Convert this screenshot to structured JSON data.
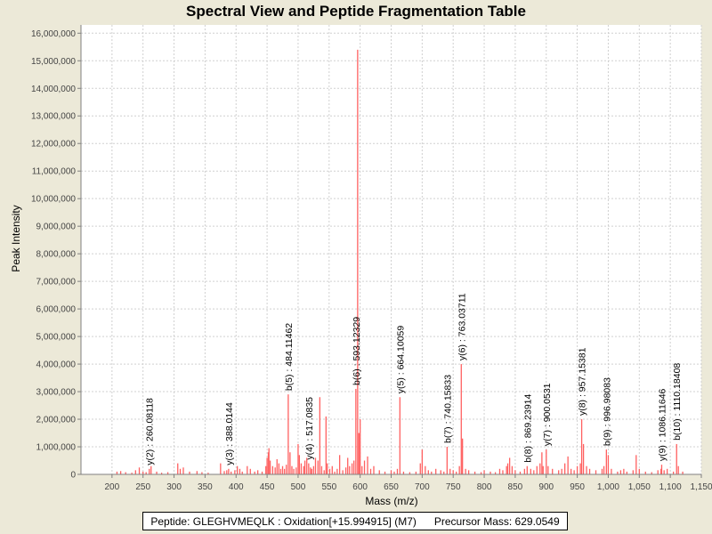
{
  "chart_data": {
    "type": "bar",
    "title": "Spectral View and Peptide Fragmentation Table",
    "xlabel": "Mass (m/z)",
    "ylabel": "Peak Intensity",
    "xlim": [
      150,
      1150
    ],
    "ylim": [
      0,
      16300000
    ],
    "x_ticks": [
      200,
      250,
      300,
      350,
      400,
      450,
      500,
      550,
      600,
      650,
      700,
      750,
      800,
      850,
      900,
      950,
      1000,
      1050,
      1100,
      1150
    ],
    "x_tick_labels": [
      "200",
      "250",
      "300",
      "350",
      "400",
      "450",
      "500",
      "550",
      "600",
      "650",
      "700",
      "750",
      "800",
      "850",
      "900",
      "950",
      "1,000",
      "1,050",
      "1,100",
      "1,150"
    ],
    "y_ticks": [
      0,
      1000000,
      2000000,
      3000000,
      4000000,
      5000000,
      6000000,
      7000000,
      8000000,
      9000000,
      10000000,
      11000000,
      12000000,
      13000000,
      14000000,
      15000000,
      16000000
    ],
    "y_tick_labels": [
      "0",
      "1,000,000",
      "2,000,000",
      "3,000,000",
      "4,000,000",
      "5,000,000",
      "6,000,000",
      "7,000,000",
      "8,000,000",
      "9,000,000",
      "10,000,000",
      "11,000,000",
      "12,000,000",
      "13,000,000",
      "14,000,000",
      "15,000,000",
      "16,000,000"
    ],
    "grid": true,
    "peak_color": "#ff6060",
    "peaks": [
      [
        208,
        100000
      ],
      [
        214,
        120000
      ],
      [
        222,
        80000
      ],
      [
        232,
        60000
      ],
      [
        238,
        150000
      ],
      [
        244,
        250000
      ],
      [
        250,
        100000
      ],
      [
        255,
        80000
      ],
      [
        260.08,
        200000
      ],
      [
        263,
        300000
      ],
      [
        272,
        100000
      ],
      [
        280,
        60000
      ],
      [
        290,
        80000
      ],
      [
        306,
        400000
      ],
      [
        310,
        200000
      ],
      [
        315,
        250000
      ],
      [
        325,
        100000
      ],
      [
        337,
        120000
      ],
      [
        345,
        80000
      ],
      [
        355,
        60000
      ],
      [
        375,
        400000
      ],
      [
        381,
        120000
      ],
      [
        385,
        150000
      ],
      [
        388.01,
        200000
      ],
      [
        392,
        100000
      ],
      [
        398,
        150000
      ],
      [
        402,
        300000
      ],
      [
        406,
        200000
      ],
      [
        410,
        100000
      ],
      [
        418,
        300000
      ],
      [
        423,
        200000
      ],
      [
        430,
        100000
      ],
      [
        435,
        150000
      ],
      [
        442,
        100000
      ],
      [
        448,
        300000
      ],
      [
        450,
        600000
      ],
      [
        452,
        800000
      ],
      [
        453,
        950000
      ],
      [
        455,
        500000
      ],
      [
        459,
        300000
      ],
      [
        463,
        250000
      ],
      [
        466,
        550000
      ],
      [
        469,
        400000
      ],
      [
        472,
        200000
      ],
      [
        475,
        300000
      ],
      [
        478,
        200000
      ],
      [
        481,
        350000
      ],
      [
        484.11,
        2900000
      ],
      [
        487,
        800000
      ],
      [
        490,
        300000
      ],
      [
        493,
        200000
      ],
      [
        497,
        250000
      ],
      [
        500,
        1100000
      ],
      [
        502,
        700000
      ],
      [
        505,
        400000
      ],
      [
        509,
        300000
      ],
      [
        511,
        500000
      ],
      [
        514,
        600000
      ],
      [
        517.08,
        400000
      ],
      [
        520,
        250000
      ],
      [
        522,
        200000
      ],
      [
        525,
        300000
      ],
      [
        528,
        600000
      ],
      [
        532,
        500000
      ],
      [
        535,
        2800000
      ],
      [
        538,
        300000
      ],
      [
        542,
        150000
      ],
      [
        545,
        2100000
      ],
      [
        547,
        400000
      ],
      [
        551,
        200000
      ],
      [
        555,
        300000
      ],
      [
        559,
        100000
      ],
      [
        563,
        200000
      ],
      [
        567,
        700000
      ],
      [
        572,
        150000
      ],
      [
        577,
        250000
      ],
      [
        580,
        600000
      ],
      [
        583,
        300000
      ],
      [
        587,
        400000
      ],
      [
        590,
        500000
      ],
      [
        593.12,
        3100000
      ],
      [
        596,
        15400000
      ],
      [
        598,
        1500000
      ],
      [
        600,
        2000000
      ],
      [
        603,
        300000
      ],
      [
        607,
        500000
      ],
      [
        612,
        650000
      ],
      [
        617,
        200000
      ],
      [
        622,
        300000
      ],
      [
        631,
        150000
      ],
      [
        640,
        100000
      ],
      [
        650,
        150000
      ],
      [
        655,
        100000
      ],
      [
        660,
        200000
      ],
      [
        664.1,
        2800000
      ],
      [
        670,
        100000
      ],
      [
        680,
        80000
      ],
      [
        690,
        100000
      ],
      [
        697,
        400000
      ],
      [
        700,
        900000
      ],
      [
        705,
        300000
      ],
      [
        710,
        150000
      ],
      [
        715,
        100000
      ],
      [
        722,
        200000
      ],
      [
        730,
        150000
      ],
      [
        735,
        100000
      ],
      [
        740.16,
        1000000
      ],
      [
        745,
        200000
      ],
      [
        750,
        150000
      ],
      [
        755,
        100000
      ],
      [
        760,
        300000
      ],
      [
        763.04,
        4000000
      ],
      [
        765,
        1300000
      ],
      [
        770,
        200000
      ],
      [
        775,
        150000
      ],
      [
        785,
        100000
      ],
      [
        795,
        80000
      ],
      [
        800,
        150000
      ],
      [
        810,
        100000
      ],
      [
        818,
        80000
      ],
      [
        825,
        200000
      ],
      [
        830,
        150000
      ],
      [
        836,
        300000
      ],
      [
        838,
        400000
      ],
      [
        841,
        600000
      ],
      [
        845,
        300000
      ],
      [
        850,
        150000
      ],
      [
        858,
        100000
      ],
      [
        865,
        200000
      ],
      [
        869.24,
        300000
      ],
      [
        875,
        200000
      ],
      [
        880,
        150000
      ],
      [
        885,
        300000
      ],
      [
        890,
        400000
      ],
      [
        893,
        800000
      ],
      [
        895,
        300000
      ],
      [
        900.05,
        900000
      ],
      [
        903,
        300000
      ],
      [
        910,
        200000
      ],
      [
        920,
        150000
      ],
      [
        925,
        200000
      ],
      [
        930,
        400000
      ],
      [
        935,
        650000
      ],
      [
        940,
        200000
      ],
      [
        945,
        150000
      ],
      [
        950,
        300000
      ],
      [
        955,
        400000
      ],
      [
        957.15,
        2000000
      ],
      [
        960,
        1100000
      ],
      [
        965,
        300000
      ],
      [
        970,
        200000
      ],
      [
        980,
        150000
      ],
      [
        990,
        200000
      ],
      [
        993,
        300000
      ],
      [
        996.98,
        900000
      ],
      [
        1000,
        700000
      ],
      [
        1005,
        200000
      ],
      [
        1015,
        100000
      ],
      [
        1020,
        150000
      ],
      [
        1025,
        200000
      ],
      [
        1030,
        100000
      ],
      [
        1040,
        150000
      ],
      [
        1045,
        700000
      ],
      [
        1050,
        200000
      ],
      [
        1060,
        100000
      ],
      [
        1070,
        80000
      ],
      [
        1080,
        150000
      ],
      [
        1085,
        200000
      ],
      [
        1086.12,
        350000
      ],
      [
        1090,
        150000
      ],
      [
        1095,
        200000
      ],
      [
        1105,
        100000
      ],
      [
        1110.18,
        1100000
      ],
      [
        1113,
        300000
      ],
      [
        1120,
        100000
      ]
    ],
    "annotations": [
      {
        "mz": 260.08118,
        "intensity": 200000,
        "label": "y(2) : 260.08118"
      },
      {
        "mz": 388.0144,
        "intensity": 200000,
        "label": "y(3) : 388.0144"
      },
      {
        "mz": 484.11462,
        "intensity": 2900000,
        "label": "b(5) : 484.11462"
      },
      {
        "mz": 517.0835,
        "intensity": 400000,
        "label": "y(4) : 517.0835"
      },
      {
        "mz": 593.12329,
        "intensity": 3100000,
        "label": "b(6) : 593.12329"
      },
      {
        "mz": 664.10059,
        "intensity": 2800000,
        "label": "y(5) : 664.10059"
      },
      {
        "mz": 740.15833,
        "intensity": 1000000,
        "label": "b(7) : 740.15833"
      },
      {
        "mz": 763.03711,
        "intensity": 4000000,
        "label": "y(6) : 763.03711"
      },
      {
        "mz": 869.23914,
        "intensity": 300000,
        "label": "b(8) : 869.23914"
      },
      {
        "mz": 900.0531,
        "intensity": 900000,
        "label": "y(7) : 900.0531"
      },
      {
        "mz": 957.15381,
        "intensity": 2000000,
        "label": "y(8) : 957.15381"
      },
      {
        "mz": 996.98083,
        "intensity": 900000,
        "label": "b(9) : 996.98083"
      },
      {
        "mz": 1086.11646,
        "intensity": 350000,
        "label": "y(9) : 1086.11646"
      },
      {
        "mz": 1110.18408,
        "intensity": 1100000,
        "label": "b(10) : 1110.18408"
      }
    ],
    "legend": {
      "peptide": "Peptide: GLEGHVMEQLK : Oxidation[+15.994915] (M7)",
      "precursor": "Precursor Mass: 629.0549"
    }
  }
}
